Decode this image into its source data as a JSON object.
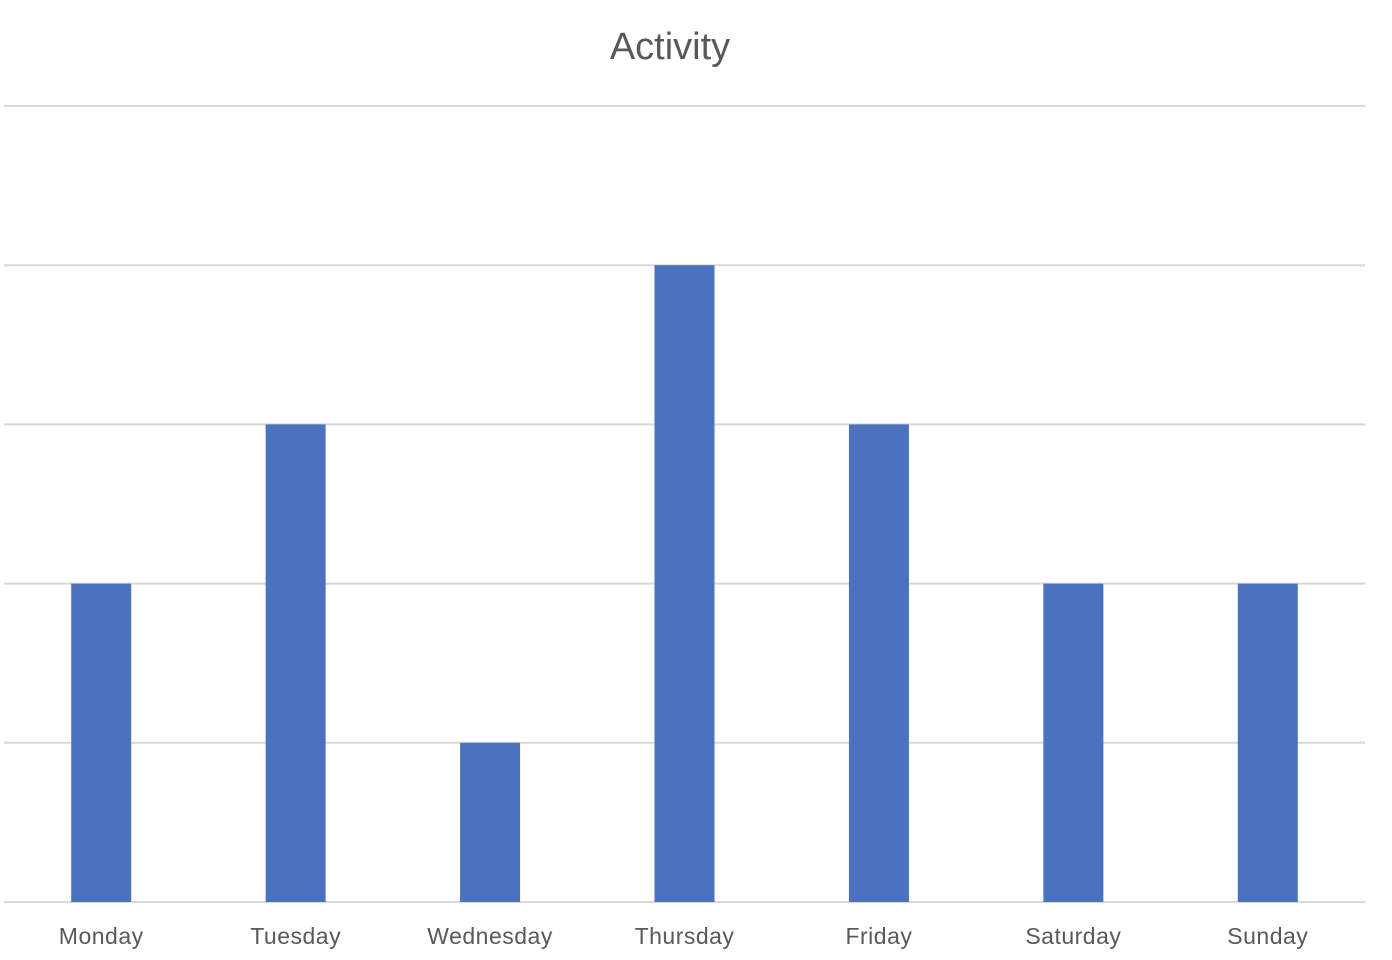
{
  "chart_data": {
    "type": "bar",
    "title": "Activity",
    "xlabel": "",
    "ylabel": "",
    "categories": [
      "Monday",
      "Tuesday",
      "Wednesday",
      "Thursday",
      "Friday",
      "Saturday",
      "Sunday"
    ],
    "values": [
      2,
      3,
      1,
      4,
      3,
      2,
      2
    ],
    "ylim": [
      0,
      5
    ],
    "grid": true,
    "legend": "none",
    "colors": {
      "bar": "#4a72be",
      "grid": "#d9d9d9",
      "text": "#595959"
    }
  }
}
